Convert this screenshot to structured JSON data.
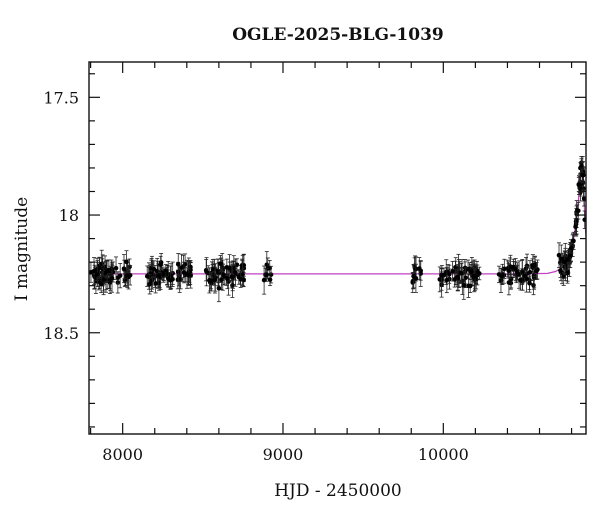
{
  "chart_data": {
    "type": "scatter",
    "title": "OGLE-2025-BLG-1039",
    "xlabel": "HJD - 2450000",
    "ylabel": "I magnitude",
    "xlim": [
      7790,
      10890
    ],
    "ylim": [
      18.93,
      17.35
    ],
    "y_inverted": true,
    "x_ticks_major": [
      8000,
      9000,
      10000
    ],
    "x_ticks_minor_step": 200,
    "y_ticks_major": [
      17.5,
      18,
      18.5
    ],
    "y_ticks_minor_step": 0.1,
    "grid": false,
    "legend": "none",
    "colors": {
      "data": "#000000",
      "model": "#c040c0"
    },
    "baseline_mag": 18.25,
    "seasons": [
      {
        "start": 7800,
        "end": 8060,
        "n": 55
      },
      {
        "start": 8150,
        "end": 8430,
        "n": 60
      },
      {
        "start": 8520,
        "end": 8760,
        "n": 55
      },
      {
        "start": 8880,
        "end": 8930,
        "n": 8
      },
      {
        "start": 9790,
        "end": 9860,
        "n": 12
      },
      {
        "start": 9970,
        "end": 10230,
        "n": 50
      },
      {
        "start": 10340,
        "end": 10590,
        "n": 45
      },
      {
        "start": 10720,
        "end": 10885,
        "n": 50
      }
    ],
    "series": [
      {
        "kind": "model",
        "x": [
          7790,
          8500,
          9500,
          10500,
          10650,
          10700,
          10750,
          10780,
          10800,
          10820,
          10840,
          10850,
          10860,
          10865,
          10870,
          10875,
          10880,
          10885,
          10890
        ],
        "y": [
          18.25,
          18.25,
          18.25,
          18.25,
          18.248,
          18.24,
          18.22,
          18.19,
          18.15,
          18.07,
          17.96,
          17.88,
          17.83,
          17.82,
          17.83,
          17.88,
          17.96,
          18.04,
          18.09
        ]
      }
    ],
    "peak_points": [
      {
        "x": 10855,
        "y": 17.8
      },
      {
        "x": 10862,
        "y": 17.79
      },
      {
        "x": 10868,
        "y": 17.83
      },
      {
        "x": 10845,
        "y": 17.87
      },
      {
        "x": 10878,
        "y": 17.93
      },
      {
        "x": 10882,
        "y": 18.02
      },
      {
        "x": 10835,
        "y": 17.98
      },
      {
        "x": 10825,
        "y": 18.05
      },
      {
        "x": 10812,
        "y": 18.11
      },
      {
        "x": 10798,
        "y": 18.14
      }
    ]
  }
}
